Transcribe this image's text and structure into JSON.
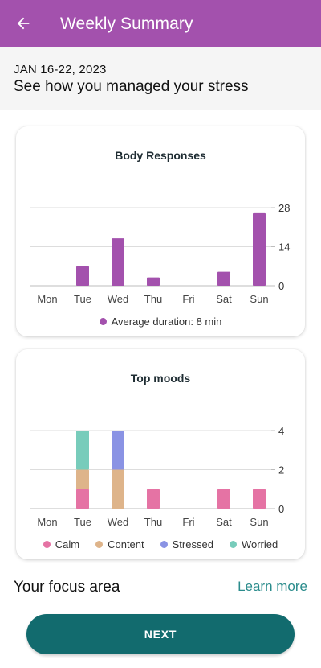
{
  "app_bar": {
    "title": "Weekly Summary",
    "back_icon": "arrow-left-icon",
    "color": "#a351ad"
  },
  "header": {
    "date_range": "JAN 16-22, 2023",
    "headline": "See how you managed your stress"
  },
  "colors": {
    "purple": "#a351ad",
    "calm": "#e573a4",
    "content": "#deb48a",
    "stressed": "#8a93e4",
    "worried": "#78ccbb",
    "teal_button": "#126b6e",
    "link": "#2b8c8c"
  },
  "chart_data": [
    {
      "type": "bar",
      "title": "Body Responses",
      "categories": [
        "Mon",
        "Tue",
        "Wed",
        "Thu",
        "Fri",
        "Sat",
        "Sun"
      ],
      "series": [
        {
          "name": "Average duration: 8 min",
          "values": [
            0,
            7,
            17,
            3,
            0,
            5,
            26
          ],
          "color": "#a351ad"
        }
      ],
      "y_ticks": [
        "28",
        "14",
        "0"
      ],
      "ylim": [
        0,
        28
      ],
      "grid": true,
      "y_axis_side": "right",
      "legend": "bottom"
    },
    {
      "type": "bar",
      "stacked": true,
      "title": "Top moods",
      "categories": [
        "Mon",
        "Tue",
        "Wed",
        "Thu",
        "Fri",
        "Sat",
        "Sun"
      ],
      "series": [
        {
          "name": "Calm",
          "values": [
            0,
            1,
            0,
            1,
            0,
            1,
            1
          ],
          "color": "#e573a4"
        },
        {
          "name": "Content",
          "values": [
            0,
            1,
            2,
            0,
            0,
            0,
            0
          ],
          "color": "#deb48a"
        },
        {
          "name": "Stressed",
          "values": [
            0,
            0,
            2,
            0,
            0,
            0,
            0
          ],
          "color": "#8a93e4"
        },
        {
          "name": "Worried",
          "values": [
            0,
            2,
            0,
            0,
            0,
            0,
            0
          ],
          "color": "#78ccbb"
        }
      ],
      "y_ticks": [
        "4",
        "2",
        "0"
      ],
      "ylim": [
        0,
        4
      ],
      "grid": true,
      "y_axis_side": "right",
      "legend": "bottom"
    }
  ],
  "focus": {
    "title": "Your focus area",
    "learn_more": "Learn more"
  },
  "next_button": {
    "label": "NEXT"
  }
}
